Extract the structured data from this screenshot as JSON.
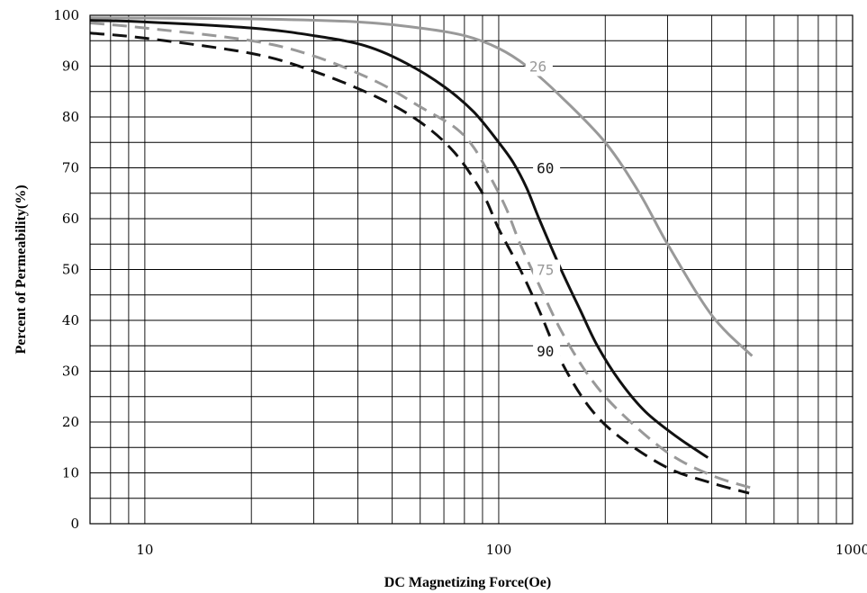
{
  "chart_data": {
    "type": "line",
    "title": "",
    "xlabel": "DC Magnetizing Force(Oe)",
    "ylabel": "Percent of Permeability(%)",
    "x_scale": "log",
    "xlim": [
      7,
      1000
    ],
    "ylim": [
      0,
      100
    ],
    "grid": true,
    "x_tick_labels": [
      "10",
      "100",
      "1000"
    ],
    "x_tick_values": [
      10,
      100,
      1000
    ],
    "y_tick_labels": [
      "0",
      "10",
      "20",
      "30",
      "40",
      "50",
      "60",
      "70",
      "80",
      "90",
      "100"
    ],
    "y_tick_values": [
      0,
      10,
      20,
      30,
      40,
      50,
      60,
      70,
      80,
      90,
      100
    ],
    "series": [
      {
        "name": "26",
        "color": "#999999",
        "dash": "solid",
        "x": [
          7,
          20,
          40,
          60,
          80,
          100,
          120,
          150,
          200,
          250,
          300,
          400,
          520
        ],
        "y": [
          99.5,
          99.3,
          98.7,
          97.5,
          96,
          93.5,
          90,
          84,
          75,
          65,
          55,
          41,
          33
        ]
      },
      {
        "name": "60",
        "color": "#111111",
        "dash": "solid",
        "x": [
          7,
          10,
          20,
          30,
          42,
          55,
          70,
          85,
          100,
          110,
          120,
          130,
          150,
          170,
          190,
          220,
          260,
          320,
          390
        ],
        "y": [
          99,
          98.7,
          97.5,
          96,
          94,
          90.5,
          86,
          81,
          75,
          71,
          66,
          60,
          50,
          42,
          35,
          28,
          22,
          17,
          13
        ]
      },
      {
        "name": "75",
        "color": "#999999",
        "dash": "dashed",
        "x": [
          7,
          10,
          20,
          30,
          45,
          60,
          75,
          85,
          95,
          105,
          115,
          130,
          150,
          180,
          220,
          300,
          400,
          520
        ],
        "y": [
          98.5,
          97.5,
          95,
          92,
          87,
          82,
          78,
          74,
          68,
          62,
          55,
          47,
          38,
          29,
          22,
          14,
          9.5,
          7
        ]
      },
      {
        "name": "90",
        "color": "#111111",
        "dash": "dashed",
        "x": [
          7,
          10,
          20,
          30,
          45,
          60,
          75,
          90,
          100,
          115,
          130,
          150,
          180,
          220,
          300,
          400,
          510
        ],
        "y": [
          96.5,
          95.5,
          92.5,
          89,
          84,
          79,
          73,
          65,
          58,
          50,
          42,
          32,
          23,
          17,
          11,
          8,
          6
        ]
      }
    ],
    "labels": [
      {
        "text": "26",
        "x": 122,
        "y": 90,
        "color": "#999999"
      },
      {
        "text": "60",
        "x": 128,
        "y": 70,
        "color": "#111111"
      },
      {
        "text": "75",
        "x": 128,
        "y": 50,
        "color": "#999999"
      },
      {
        "text": "90",
        "x": 128,
        "y": 34,
        "color": "#111111"
      }
    ]
  }
}
